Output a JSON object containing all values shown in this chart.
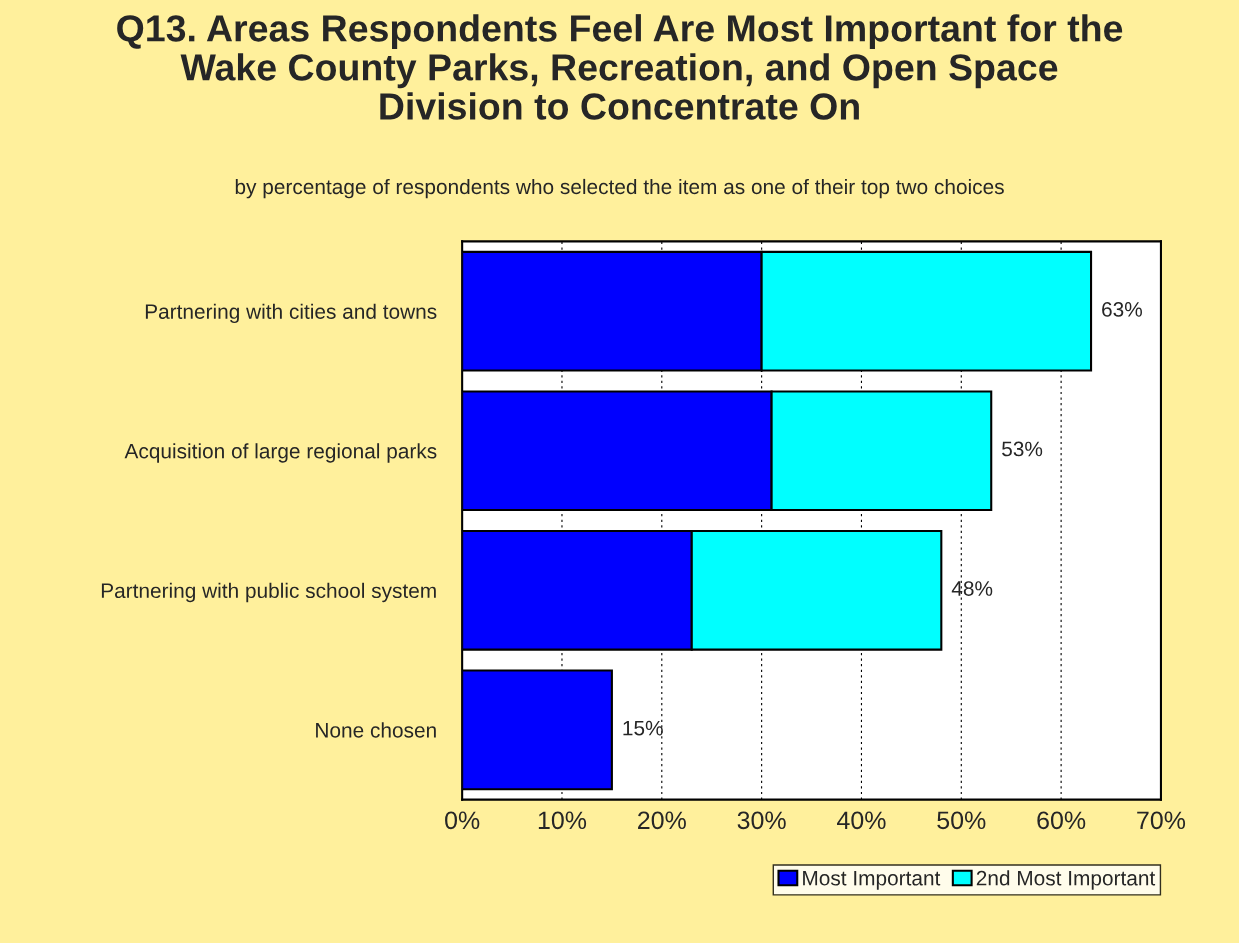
{
  "chart_data": {
    "type": "bar",
    "orientation": "horizontal",
    "stacked": true,
    "title": "Q13. Areas Respondents Feel Are Most Important for the\nWake County Parks, Recreation, and Open Space\nDivision to Concentrate On",
    "subtitle": "by percentage of respondents who selected the item as one of their top two choices",
    "categories": [
      "Partnering with cities and towns",
      "Acquisition of large regional parks",
      "Partnering with public school system",
      "None chosen"
    ],
    "series": [
      {
        "name": "Most Important",
        "color": "#0000ff",
        "values": [
          30,
          31,
          23,
          15
        ]
      },
      {
        "name": "2nd Most Important",
        "color": "#00ffff",
        "values": [
          33,
          22,
          25,
          null
        ]
      }
    ],
    "totals": [
      "63%",
      "53%",
      "48%",
      "15%"
    ],
    "xlim": [
      0,
      70
    ],
    "xticks": [
      {
        "value": 0,
        "label": "0%"
      },
      {
        "value": 10,
        "label": "10%"
      },
      {
        "value": 20,
        "label": "20%"
      },
      {
        "value": 30,
        "label": "30%"
      },
      {
        "value": 40,
        "label": "40%"
      },
      {
        "value": 50,
        "label": "50%"
      },
      {
        "value": 60,
        "label": "60%"
      },
      {
        "value": 70,
        "label": "70%"
      }
    ],
    "grid": "x",
    "legend": "bottom right"
  }
}
